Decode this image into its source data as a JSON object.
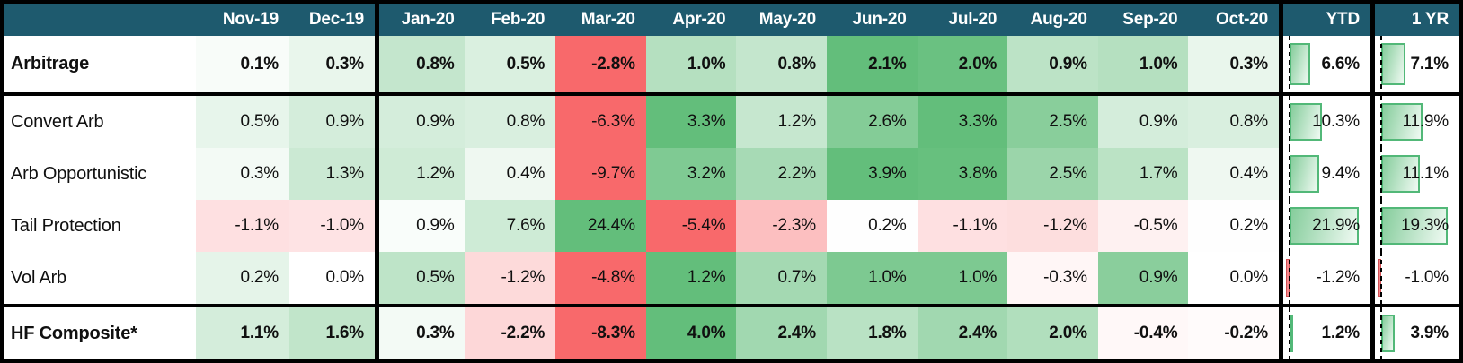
{
  "colors": {
    "header_bg": "#1E5A6E",
    "header_text": "#FFFFFF",
    "scale_positive_max": "#63BE7B",
    "scale_negative_min": "#F8696B",
    "scale_midpoint": "#FFFFFF",
    "grid_border": "#000000",
    "bar_border_positive": "#52B878",
    "bar_fill_positive": "#86CD9C",
    "bar_border_negative": "#D14F53",
    "bar_fill_negative": "#F6898C",
    "cell_text": "#101010"
  },
  "chart_data": {
    "type": "heatmap",
    "title": "Arbitrage strategies monthly returns heatmap with YTD and 1 YR data bars",
    "value_format": "percent, one decimal",
    "color_scale": "per-row 3-color scale: row min -> red, 0 -> white, row max -> green (monthly columns only)",
    "bar_columns_note": "YTD and 1 YR shown as gradient data bars from dashed zero axis, scaled per column",
    "columns": [
      "Nov-19",
      "Dec-19",
      "Jan-20",
      "Feb-20",
      "Mar-20",
      "Apr-20",
      "May-20",
      "Jun-20",
      "Jul-20",
      "Aug-20",
      "Sep-20",
      "Oct-20",
      "YTD",
      "1 YR"
    ],
    "rows": [
      {
        "label": "Arbitrage",
        "emphasis": true,
        "monthly": [
          0.1,
          0.3,
          0.8,
          0.5,
          -2.8,
          1.0,
          0.8,
          2.1,
          2.0,
          0.9,
          1.0,
          0.3
        ],
        "ytd": 6.6,
        "one_yr": 7.1
      },
      {
        "label": "Convert Arb",
        "emphasis": false,
        "monthly": [
          0.5,
          0.9,
          0.9,
          0.8,
          -6.3,
          3.3,
          1.2,
          2.6,
          3.3,
          2.5,
          0.9,
          0.8
        ],
        "ytd": 10.3,
        "one_yr": 11.9
      },
      {
        "label": "Arb Opportunistic",
        "emphasis": false,
        "monthly": [
          0.3,
          1.3,
          1.2,
          0.4,
          -9.7,
          3.2,
          2.2,
          3.9,
          3.8,
          2.5,
          1.7,
          0.4
        ],
        "ytd": 9.4,
        "one_yr": 11.1
      },
      {
        "label": "Tail Protection",
        "emphasis": false,
        "monthly": [
          -1.1,
          -1.0,
          0.9,
          7.6,
          24.4,
          -5.4,
          -2.3,
          0.2,
          -1.1,
          -1.2,
          -0.5,
          0.2
        ],
        "ytd": 21.9,
        "one_yr": 19.3
      },
      {
        "label": "Vol Arb",
        "emphasis": false,
        "monthly": [
          0.2,
          0.0,
          0.5,
          -1.2,
          -4.8,
          1.2,
          0.7,
          1.0,
          1.0,
          -0.3,
          0.9,
          0.0
        ],
        "ytd": -1.2,
        "one_yr": -1.0
      },
      {
        "label": "HF Composite*",
        "emphasis": true,
        "monthly": [
          1.1,
          1.6,
          0.3,
          -2.2,
          -8.3,
          4.0,
          2.4,
          1.8,
          2.4,
          2.0,
          -0.4,
          -0.2
        ],
        "ytd": 1.2,
        "one_yr": 3.9
      }
    ]
  }
}
